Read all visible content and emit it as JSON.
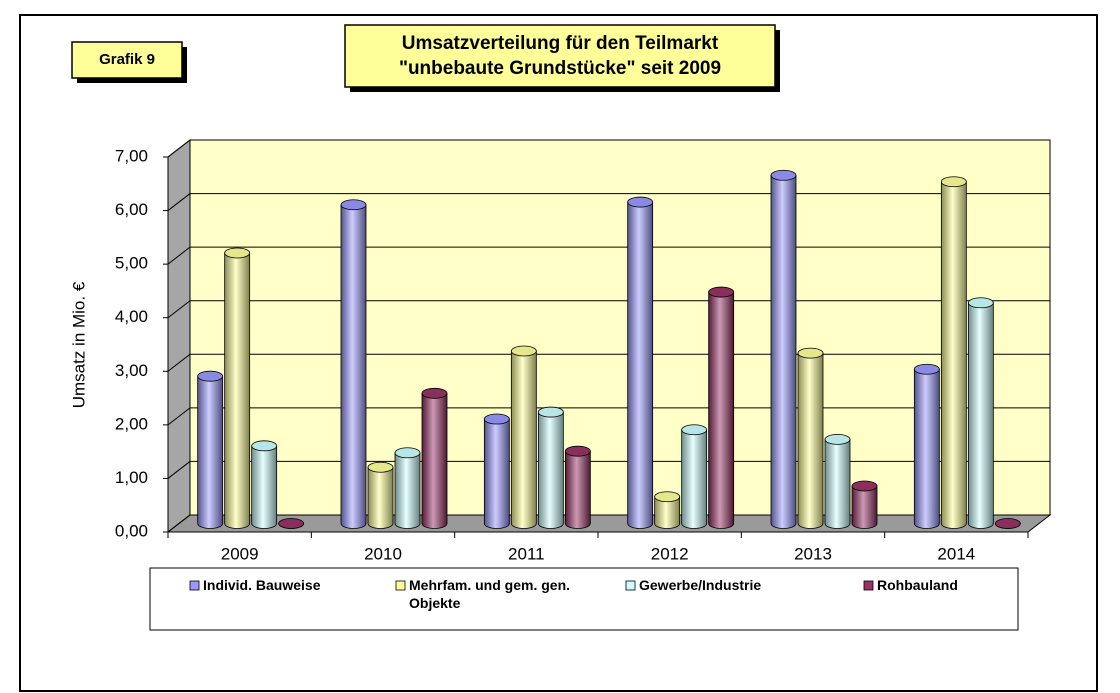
{
  "chart_data": {
    "type": "bar3d",
    "badge": "Grafik 9",
    "title": [
      "Umsatzverteilung für den Teilmarkt",
      "\"unbebaute Grundstücke\" seit 2009"
    ],
    "y_label": "Umsatz in Mio. €",
    "categories": [
      "2009",
      "2010",
      "2011",
      "2012",
      "2013",
      "2014"
    ],
    "series": [
      {
        "name": "Individ. Bauweise",
        "color": "#9999ff",
        "values": [
          2.75,
          5.95,
          1.95,
          6.0,
          6.5,
          2.88
        ]
      },
      {
        "name": "Mehrfam. und gem. gen. Objekte",
        "color": "#ffff99",
        "values": [
          5.05,
          1.05,
          3.22,
          0.5,
          3.18,
          6.38
        ]
      },
      {
        "name": "Gewerbe/Industrie",
        "color": "#ccffff",
        "values": [
          1.45,
          1.32,
          2.08,
          1.75,
          1.57,
          4.12
        ]
      },
      {
        "name": "Rohbauland",
        "color": "#993366",
        "values": [
          0,
          2.43,
          1.35,
          4.32,
          0.7,
          0
        ]
      }
    ],
    "ylim": [
      0,
      7
    ],
    "yticks": [
      {
        "value": 0,
        "label": "0,00"
      },
      {
        "value": 1,
        "label": "1,00"
      },
      {
        "value": 2,
        "label": "2,00"
      },
      {
        "value": 3,
        "label": "3,00"
      },
      {
        "value": 4,
        "label": "4,00"
      },
      {
        "value": 5,
        "label": "5,00"
      },
      {
        "value": 6,
        "label": "6,00"
      },
      {
        "value": 7,
        "label": "7,00"
      }
    ],
    "grid": true
  }
}
